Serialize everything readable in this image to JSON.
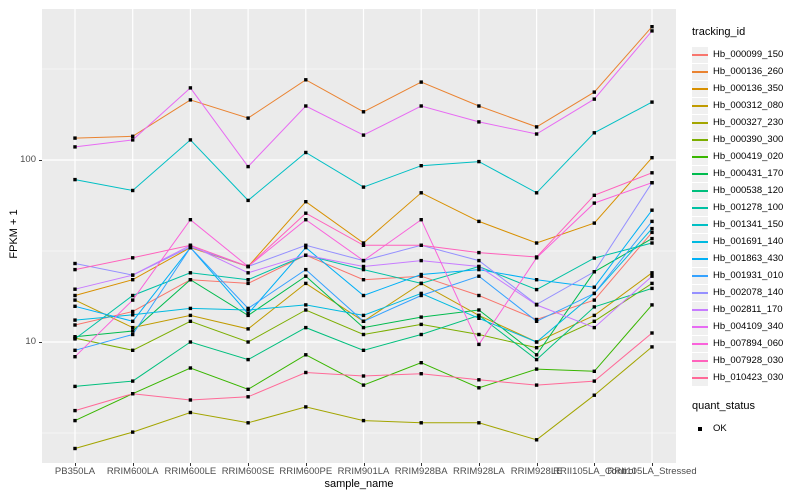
{
  "chart_data": {
    "type": "line",
    "title": "",
    "xlabel": "sample_name",
    "ylabel": "FPKM + 1",
    "y_scale": "log10",
    "ylim": [
      2.16,
      680
    ],
    "y_major_ticks": [
      10,
      100
    ],
    "y_minor_ticks": [
      3.162,
      31.62,
      316.2
    ],
    "grid": "on",
    "legend_position": "right",
    "legend_title": "tracking_id",
    "marker": "black-square",
    "categories": [
      "PB350LA",
      "RRIM600LA",
      "RRIM600LE",
      "RRIM600SE",
      "RRIM600PE",
      "RRIM901LA",
      "RRIM928BA",
      "RRIM928LA",
      "RRIM928LE",
      "RRII105LA_Control",
      "RRII105LA_Stressed"
    ],
    "series": [
      {
        "name": "Hb_000099_150",
        "color": "#F8766D",
        "values": [
          12.4,
          14.7,
          22,
          21,
          30,
          22,
          23,
          18,
          13.3,
          17,
          40
        ]
      },
      {
        "name": "Hb_000136_260",
        "color": "#EA8331",
        "values": [
          132,
          135,
          214,
          170,
          276,
          184,
          268,
          198,
          152,
          236,
          540
        ]
      },
      {
        "name": "Hb_000136_350",
        "color": "#D89000",
        "values": [
          18,
          22,
          33,
          26,
          59,
          35,
          66,
          46,
          35,
          45,
          103
        ]
      },
      {
        "name": "Hb_000312_080",
        "color": "#C09B00",
        "values": [
          17,
          12,
          14,
          11.8,
          21,
          13,
          21,
          14,
          10,
          14,
          24
        ]
      },
      {
        "name": "Hb_000327_230",
        "color": "#A3A500",
        "values": [
          2.6,
          3.2,
          4.1,
          3.6,
          4.4,
          3.7,
          3.6,
          3.6,
          2.9,
          5.1,
          9.4
        ]
      },
      {
        "name": "Hb_000390_300",
        "color": "#7CAE00",
        "values": [
          10.5,
          9,
          13,
          10,
          15,
          11,
          12.5,
          11,
          9.3,
          13,
          21
        ]
      },
      {
        "name": "Hb_000419_020",
        "color": "#39B600",
        "values": [
          3.7,
          5.2,
          7.2,
          5.5,
          8.5,
          5.8,
          7.7,
          5.6,
          7.1,
          6.9,
          16
        ]
      },
      {
        "name": "Hb_000431_170",
        "color": "#00BB4E",
        "values": [
          10.7,
          11.5,
          22,
          14,
          23,
          12,
          13.7,
          15,
          8.5,
          24.3,
          37
        ]
      },
      {
        "name": "Hb_000538_120",
        "color": "#00BF7D",
        "values": [
          5.7,
          6.1,
          10,
          8,
          12,
          9,
          11,
          14,
          8,
          15.6,
          19.7
        ]
      },
      {
        "name": "Hb_001278_100",
        "color": "#00C1A3",
        "values": [
          10.4,
          18,
          24,
          22,
          30,
          25,
          21,
          26,
          19.4,
          28.9,
          35
        ]
      },
      {
        "name": "Hb_001341_150",
        "color": "#00BFC4",
        "values": [
          78,
          68,
          129,
          60,
          110,
          71,
          93,
          98,
          66,
          141,
          208
        ]
      },
      {
        "name": "Hb_001691_140",
        "color": "#00BAE0",
        "values": [
          13.2,
          14.1,
          15.3,
          15,
          16,
          14,
          18.5,
          13.5,
          10,
          18.5,
          42
        ]
      },
      {
        "name": "Hb_001863_430",
        "color": "#00B0F6",
        "values": [
          15.7,
          13,
          33,
          14.3,
          33,
          18,
          23.5,
          25,
          22,
          20,
          53
        ]
      },
      {
        "name": "Hb_001931_010",
        "color": "#35A2FF",
        "values": [
          9,
          11,
          33,
          15.3,
          25,
          13,
          18,
          23,
          13,
          18.5,
          46
        ]
      },
      {
        "name": "Hb_002078_140",
        "color": "#9590FF",
        "values": [
          27,
          23.3,
          33.3,
          26,
          34,
          28,
          34,
          28,
          16.1,
          24.3,
          75
        ]
      },
      {
        "name": "Hb_002811_170",
        "color": "#C77CFF",
        "values": [
          19.5,
          23.3,
          34,
          24,
          30,
          26,
          28,
          26,
          16,
          12,
          23
        ]
      },
      {
        "name": "Hb_004109_340",
        "color": "#E76BF3",
        "values": [
          118,
          129,
          249,
          92,
          198,
          137,
          198,
          162,
          139,
          216,
          512
        ]
      },
      {
        "name": "Hb_007894_060",
        "color": "#FA62DB",
        "values": [
          8.3,
          17,
          47,
          26,
          47,
          28,
          47,
          9.7,
          29,
          58,
          75
        ]
      },
      {
        "name": "Hb_007928_030",
        "color": "#FF62BC",
        "values": [
          25,
          29,
          34,
          26,
          51,
          34,
          34,
          31,
          29.3,
          64,
          85
        ]
      },
      {
        "name": "Hb_010423_030",
        "color": "#FF6A98",
        "values": [
          4.2,
          5.2,
          4.8,
          5,
          6.8,
          6.5,
          6.7,
          6.2,
          5.8,
          6.1,
          11.2
        ]
      }
    ],
    "quant_legend": {
      "title": "quant_status",
      "items": [
        "OK"
      ]
    }
  },
  "colors": {
    "panel_background": "#EBEBEB",
    "gridline": "#FFFFFF",
    "tick_text": "#4D4D4D",
    "marker": "#000000"
  }
}
